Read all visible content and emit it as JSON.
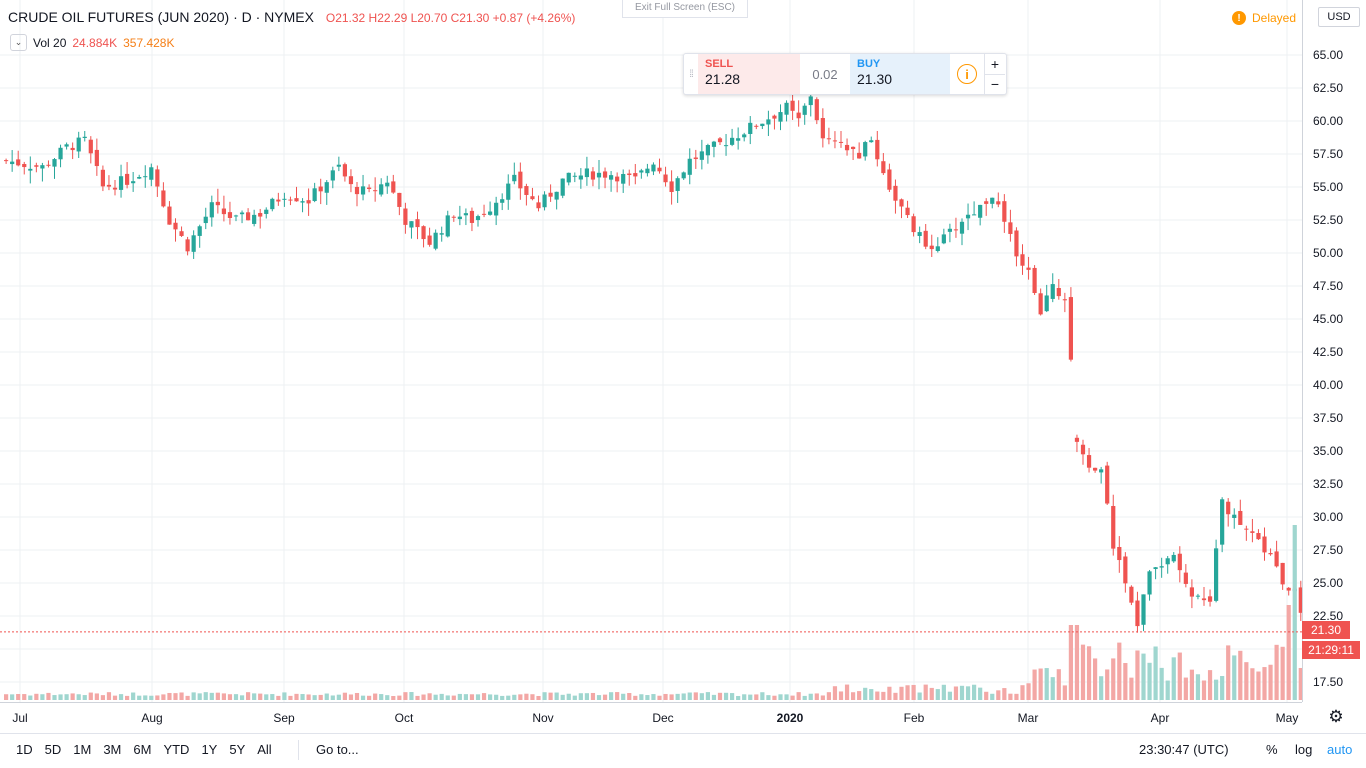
{
  "header": {
    "symbol_title": "CRUDE OIL FUTURES (JUN 2020) · D · NYMEX",
    "ohlc": "O21.32  H22.29  L20.70  C21.30  +0.87 (+4.26%)",
    "volume_label": "Vol 20",
    "volume_value": "24.884K",
    "volume_ma": "357.428K",
    "exit_fullscreen": "Exit Full Screen (ESC)",
    "delayed": "Delayed",
    "currency": "USD"
  },
  "trade_panel": {
    "sell_label": "SELL",
    "sell_price": "21.28",
    "spread": "0.02",
    "buy_label": "BUY",
    "buy_price": "21.30",
    "plus": "+",
    "minus": "−"
  },
  "price_axis": {
    "ticks": [
      "65.00",
      "62.50",
      "60.00",
      "57.50",
      "55.00",
      "52.50",
      "50.00",
      "47.50",
      "45.00",
      "42.50",
      "40.00",
      "37.50",
      "35.00",
      "32.50",
      "30.00",
      "27.50",
      "25.00",
      "22.50",
      "17.50"
    ],
    "last_price_label": "21.30",
    "countdown_label": "21:29:11"
  },
  "time_axis": {
    "labels": [
      {
        "text": "Jul",
        "bold": false
      },
      {
        "text": "Aug",
        "bold": false
      },
      {
        "text": "Sep",
        "bold": false
      },
      {
        "text": "Oct",
        "bold": false
      },
      {
        "text": "Nov",
        "bold": false
      },
      {
        "text": "Dec",
        "bold": false
      },
      {
        "text": "2020",
        "bold": true
      },
      {
        "text": "Feb",
        "bold": false
      },
      {
        "text": "Mar",
        "bold": false
      },
      {
        "text": "Apr",
        "bold": false
      },
      {
        "text": "May",
        "bold": false
      }
    ]
  },
  "bottom_bar": {
    "ranges": [
      "1D",
      "5D",
      "1M",
      "3M",
      "6M",
      "YTD",
      "1Y",
      "5Y",
      "All"
    ],
    "goto": "Go to...",
    "clock": "23:30:47 (UTC)",
    "percent": "%",
    "log": "log",
    "auto": "auto"
  },
  "colors": {
    "up": "#26a69a",
    "down": "#ef5350",
    "vol_up": "#9fd6cf",
    "vol_down": "#f3a7a5",
    "grid": "#eef0f3",
    "accent": "#2196f3"
  },
  "chart_data": {
    "type": "candlestick",
    "instrument": "CRUDE OIL FUTURES (JUN 2020)",
    "interval": "D",
    "y_range": [
      15,
      67.5
    ],
    "last_price": 21.3,
    "series_approx_closes": [
      {
        "period": "Jul 2019",
        "range": [
          54.5,
          58.5
        ]
      },
      {
        "period": "Aug 2019",
        "range": [
          50.0,
          56.5
        ]
      },
      {
        "period": "Sep 2019",
        "range": [
          51.0,
          59.5
        ]
      },
      {
        "period": "Oct 2019",
        "range": [
          49.5,
          54.0
        ]
      },
      {
        "period": "Nov 2019",
        "range": [
          52.5,
          56.5
        ]
      },
      {
        "period": "Dec 2019",
        "range": [
          54.5,
          60.5
        ]
      },
      {
        "period": "Jan 2020",
        "range": [
          50.0,
          62.0
        ]
      },
      {
        "period": "Feb 2020",
        "range": [
          50.0,
          55.0
        ]
      },
      {
        "period": "Mar 2020",
        "range": [
          21.5,
          48.5
        ]
      },
      {
        "period": "Apr 2020",
        "range": [
          20.7,
          33.0
        ]
      }
    ],
    "key_points": [
      {
        "label": "Early Jan 2020 high",
        "y": 62.5
      },
      {
        "label": "Early Mar 2020 low before gap",
        "y": 41.6
      },
      {
        "label": "Mid Mar 2020 gap high",
        "y": 37.0
      },
      {
        "label": "Mid Apr 2020 bounce high",
        "y": 33.2
      },
      {
        "label": "Last close",
        "y": 21.3
      }
    ],
    "grid": true
  }
}
